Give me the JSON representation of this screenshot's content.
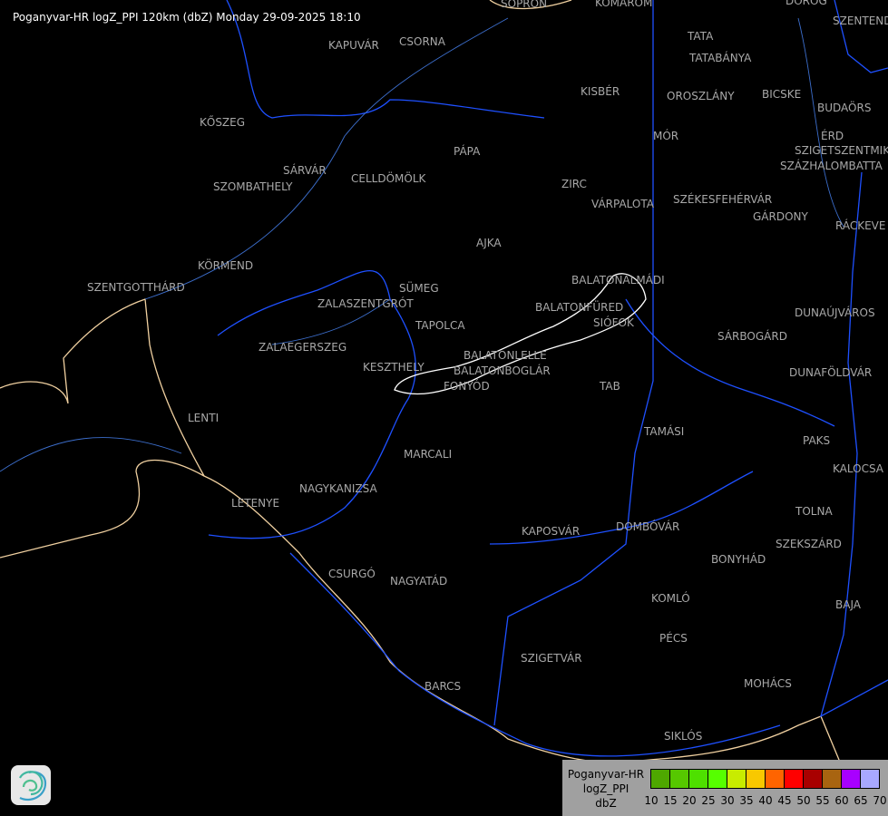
{
  "title": "Poganyvar-HR logZ_PPI 120km (dbZ) Monday 29-09-2025 18:10",
  "cities": [
    "SOPRON",
    "KOMÁROM",
    "DOROG",
    "SZENTENDRE",
    "TATA",
    "TATABÁNYA",
    "KAPUVÁR",
    "CSORNA",
    "KISBÉR",
    "OROSZLÁNY",
    "BICSKE",
    "BUDAÖRS",
    "KŐSZEG",
    "ÉRD",
    "MÓR",
    "SZIGETSZENTMIKLÓS",
    "SZÁZHALOMBATTA",
    "PÁPA",
    "SÁRVÁR",
    "CELLDÖMÖLK",
    "SZOMBATHELY",
    "ZIRC",
    "VÁRPALOTA",
    "SZÉKESFEHÉRVÁR",
    "GÁRDONY",
    "RÁCKEVE",
    "AJKA",
    "KÖRMEND",
    "BALATONALMÁDI",
    "SZENTGOTTHÁRD",
    "SÜMEG",
    "ZALASZENTGRÓT",
    "BALATONFÜRED",
    "DUNAÚJVÁROS",
    "SIÓFOK",
    "TAPOLCA",
    "SÁRBOGÁRD",
    "ZALAEGERSZEG",
    "BALATONLELLE",
    "KESZTHELY",
    "BALATONBOGLÁR",
    "DUNAFÖLDVÁR",
    "FONYÓD",
    "TAB",
    "LENTI",
    "TAMÁSI",
    "PAKS",
    "MARCALI",
    "KALOCSA",
    "NAGYKANIZSA",
    "LETENYE",
    "TOLNA",
    "KAPOSVÁR",
    "DOMBÓVÁR",
    "SZEKSZÁRD",
    "BONYHÁD",
    "CSURGÓ",
    "NAGYATÁD",
    "KOMLÓ",
    "BAJA",
    "PÉCS",
    "SZIGETVÁR",
    "MOHÁCS",
    "BARCS",
    "SIKLÓS"
  ],
  "legend": {
    "lines": [
      "Poganyvar-HR",
      "logZ_PPI",
      "dbZ"
    ],
    "colors": [
      "#4ea800",
      "#56c800",
      "#4ee000",
      "#56ff00",
      "#c8ec00",
      "#f8c800",
      "#ff6400",
      "#ff0000",
      "#a80000",
      "#a86410",
      "#a800ff",
      "#a8a8ff"
    ],
    "ticks": [
      "10",
      "15",
      "20",
      "25",
      "30",
      "35",
      "40",
      "45",
      "50",
      "55",
      "60",
      "65",
      "70"
    ]
  },
  "colors": {
    "border": "#f0d0a0",
    "river": "#1e50ff",
    "outline": "#ffffff",
    "background": "#000000"
  },
  "logo_icon": "swirl-logo-icon"
}
